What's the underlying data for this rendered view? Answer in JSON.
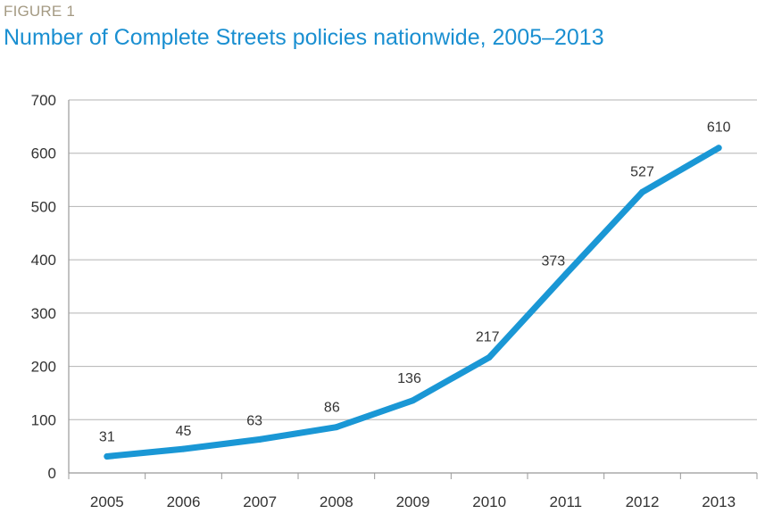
{
  "figure_label": "FIGURE 1",
  "title": "Number of Complete Streets policies nationwide, 2005–2013",
  "colors": {
    "line": "#1a97d5",
    "title": "#1a8fd1",
    "label": "#a49a83",
    "grid": "#b3b3b3"
  },
  "chart_data": {
    "type": "line",
    "title": "Number of Complete Streets policies nationwide, 2005–2013",
    "xlabel": "",
    "ylabel": "",
    "categories": [
      "2005",
      "2006",
      "2007",
      "2008",
      "2009",
      "2010",
      "2011",
      "2012",
      "2013"
    ],
    "series": [
      {
        "values": [
          31,
          45,
          63,
          86,
          136,
          217,
          373,
          527,
          610
        ]
      }
    ],
    "data_labels": [
      "31",
      "45",
      "63",
      "86",
      "136",
      "217",
      "373",
      "527",
      "610"
    ],
    "ylim": [
      0,
      700
    ],
    "yticks": [
      0,
      100,
      200,
      300,
      400,
      500,
      600,
      700
    ],
    "grid": true,
    "legend": "none"
  }
}
